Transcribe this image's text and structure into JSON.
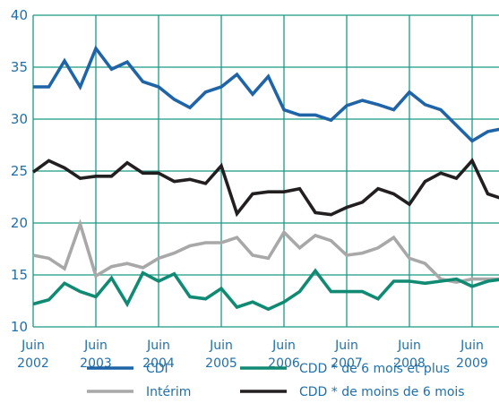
{
  "chart_data": {
    "type": "line",
    "title": "",
    "xlabel": "",
    "ylabel": "",
    "ylim": [
      10,
      40
    ],
    "y_ticks": [
      "10",
      "15",
      "20",
      "25",
      "30",
      "35",
      "40"
    ],
    "x_ticks": [
      {
        "month": "Juin",
        "year": "2002"
      },
      {
        "month": "Juin",
        "year": "2003"
      },
      {
        "month": "Juin",
        "year": "2004"
      },
      {
        "month": "Juin",
        "year": "2005"
      },
      {
        "month": "Juin",
        "year": "2006"
      },
      {
        "month": "Juin",
        "year": "2007"
      },
      {
        "month": "Juin",
        "year": "2008"
      },
      {
        "month": "Juin",
        "year": "2009"
      }
    ],
    "x": [
      "2002-Q2",
      "2002-Q3",
      "2002-Q4",
      "2003-Q1",
      "2003-Q2",
      "2003-Q3",
      "2003-Q4",
      "2004-Q1",
      "2004-Q2",
      "2004-Q3",
      "2004-Q4",
      "2005-Q1",
      "2005-Q2",
      "2005-Q3",
      "2005-Q4",
      "2006-Q1",
      "2006-Q2",
      "2006-Q3",
      "2006-Q4",
      "2007-Q1",
      "2007-Q2",
      "2007-Q3",
      "2007-Q4",
      "2008-Q1",
      "2008-Q2",
      "2008-Q3",
      "2008-Q4",
      "2009-Q1",
      "2009-Q2",
      "2009-Q3",
      "2009-Q4"
    ],
    "grid": true,
    "legend_position": "bottom",
    "series": [
      {
        "name": "CDI",
        "color": "#1f64a6",
        "values": [
          33.1,
          33.1,
          35.6,
          33.1,
          36.8,
          34.8,
          35.5,
          33.6,
          33.1,
          31.9,
          31.1,
          32.6,
          33.1,
          34.3,
          32.4,
          34.1,
          30.9,
          30.4,
          30.4,
          29.9,
          31.3,
          31.8,
          31.4,
          30.9,
          32.6,
          31.4,
          30.9,
          29.4,
          27.9,
          28.8,
          29.1
        ]
      },
      {
        "name": "Intérim",
        "color": "#a8a8a8",
        "values": [
          16.9,
          16.6,
          15.6,
          19.9,
          14.9,
          15.8,
          16.1,
          15.7,
          16.6,
          17.1,
          17.8,
          18.1,
          18.1,
          18.6,
          16.9,
          16.6,
          19.1,
          17.6,
          18.8,
          18.3,
          16.9,
          17.1,
          17.6,
          18.6,
          16.6,
          16.1,
          14.6,
          14.3,
          14.6,
          14.6,
          14.6
        ]
      },
      {
        "name": "CDD * de 6 mois et plus",
        "color": "#118a74",
        "values": [
          12.2,
          12.6,
          14.2,
          13.4,
          12.9,
          14.7,
          12.2,
          15.2,
          14.4,
          15.1,
          12.9,
          12.7,
          13.7,
          11.9,
          12.4,
          11.7,
          12.4,
          13.4,
          15.4,
          13.4,
          13.4,
          13.4,
          12.7,
          14.4,
          14.4,
          14.2,
          14.4,
          14.6,
          13.9,
          14.4,
          14.6
        ]
      },
      {
        "name": "CDD * de moins de 6 mois",
        "color": "#231f20",
        "values": [
          24.9,
          26.0,
          25.3,
          24.3,
          24.5,
          24.5,
          25.8,
          24.8,
          24.8,
          24.0,
          24.2,
          23.8,
          25.5,
          20.9,
          22.8,
          23.0,
          23.0,
          23.3,
          21.0,
          20.8,
          21.5,
          22.0,
          23.3,
          22.8,
          21.8,
          24.0,
          24.8,
          24.3,
          26.0,
          22.8,
          22.3
        ]
      }
    ]
  }
}
